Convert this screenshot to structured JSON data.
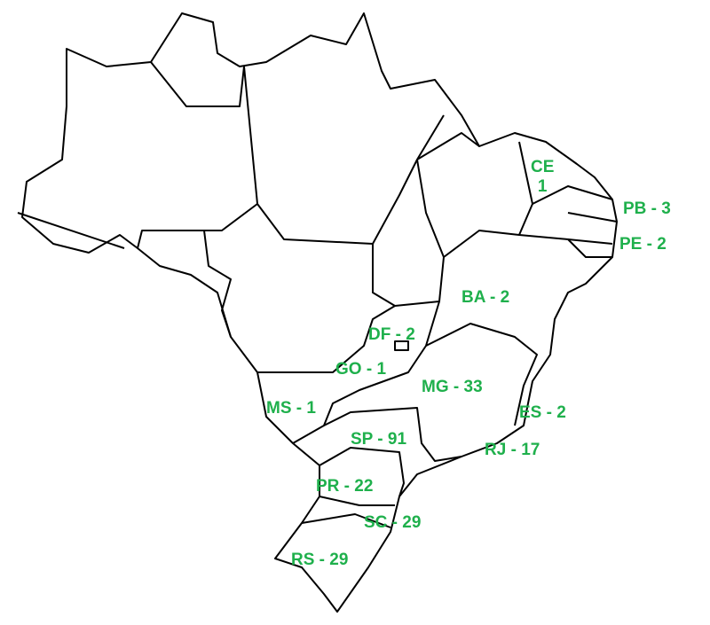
{
  "map": {
    "label_color": "#1fb04c",
    "states": [
      {
        "code": "CE",
        "value": "1"
      },
      {
        "code": "PB",
        "value": "3"
      },
      {
        "code": "PE",
        "value": "2"
      },
      {
        "code": "BA",
        "value": "2"
      },
      {
        "code": "DF",
        "value": "2"
      },
      {
        "code": "GO",
        "value": "1"
      },
      {
        "code": "MG",
        "value": "33"
      },
      {
        "code": "MS",
        "value": "1"
      },
      {
        "code": "ES",
        "value": "2"
      },
      {
        "code": "SP",
        "value": "91"
      },
      {
        "code": "RJ",
        "value": "17"
      },
      {
        "code": "PR",
        "value": "22"
      },
      {
        "code": "SC",
        "value": "29"
      },
      {
        "code": "RS",
        "value": "29"
      }
    ],
    "separator": " - "
  }
}
